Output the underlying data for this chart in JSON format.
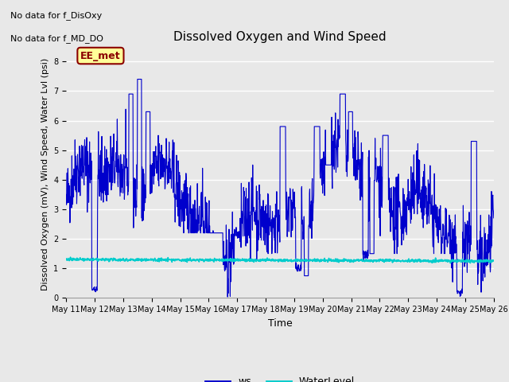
{
  "title": "Dissolved Oxygen and Wind Speed",
  "ylabel": "Dissolved Oxygen (mV), Wind Speed, Water Lvl (psi)",
  "xlabel": "Time",
  "top_left_text_line1": "No data for f_DisOxy",
  "top_left_text_line2": "No data for f_MD_DO",
  "annotation_box_text": "EE_met",
  "annotation_box_color": "#ffff99",
  "annotation_box_edge": "#8b0000",
  "ylim": [
    0.0,
    8.4
  ],
  "yticks": [
    0.0,
    1.0,
    2.0,
    3.0,
    4.0,
    5.0,
    6.0,
    7.0,
    8.0
  ],
  "x_tick_labels": [
    "May 11",
    "May 12",
    "May 13",
    "May 14",
    "May 15",
    "May 16",
    "May 17",
    "May 18",
    "May 19",
    "May 20",
    "May 21",
    "May 22",
    "May 23",
    "May 24",
    "May 25",
    "May 26"
  ],
  "ws_color": "#0000cc",
  "water_color": "#00cccc",
  "legend_labels": [
    "ws",
    "WaterLevel"
  ],
  "bg_color": "#e8e8e8",
  "plot_bg_color": "#e8e8e8",
  "grid_color": "#ffffff",
  "water_level_mean": 1.3,
  "water_level_std": 0.025,
  "title_fontsize": 11,
  "axis_fontsize": 8,
  "tick_fontsize": 7
}
